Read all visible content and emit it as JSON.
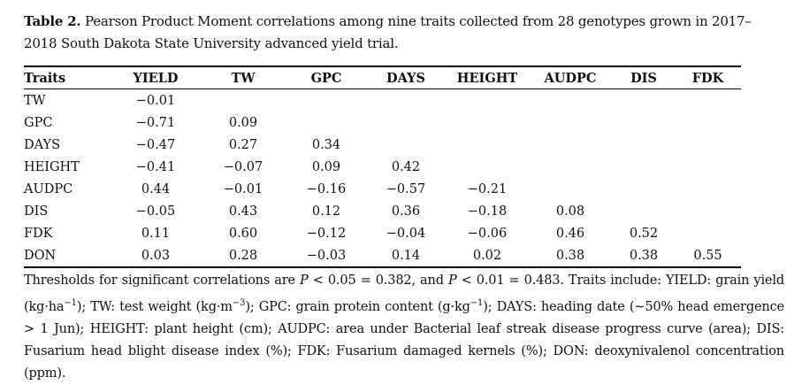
{
  "caption": {
    "label": "Table 2.",
    "text": " Pearson Product Moment correlations among nine traits collected from 28 genotypes grown in 2017–2018 South Dakota State University advanced yield trial."
  },
  "table": {
    "headers": [
      "Traits",
      "YIELD",
      "TW",
      "GPC",
      "DAYS",
      "HEIGHT",
      "AUDPC",
      "DIS",
      "FDK"
    ],
    "rows": [
      {
        "trait": "TW",
        "values": [
          "−0.01",
          "",
          "",
          "",
          "",
          "",
          "",
          ""
        ]
      },
      {
        "trait": "GPC",
        "values": [
          "−0.71",
          "0.09",
          "",
          "",
          "",
          "",
          "",
          ""
        ]
      },
      {
        "trait": "DAYS",
        "values": [
          "−0.47",
          "0.27",
          "0.34",
          "",
          "",
          "",
          "",
          ""
        ]
      },
      {
        "trait": "HEIGHT",
        "values": [
          "−0.41",
          "−0.07",
          "0.09",
          "0.42",
          "",
          "",
          "",
          ""
        ]
      },
      {
        "trait": "AUDPC",
        "values": [
          "0.44",
          "−0.01",
          "−0.16",
          "−0.57",
          "−0.21",
          "",
          "",
          ""
        ]
      },
      {
        "trait": "DIS",
        "values": [
          "−0.05",
          "0.43",
          "0.12",
          "0.36",
          "−0.18",
          "0.08",
          "",
          ""
        ]
      },
      {
        "trait": "FDK",
        "values": [
          "0.11",
          "0.60",
          "−0.12",
          "−0.04",
          "−0.06",
          "0.46",
          "0.52",
          ""
        ]
      },
      {
        "trait": "DON",
        "values": [
          "0.03",
          "0.28",
          "−0.03",
          "0.14",
          "0.02",
          "0.38",
          "0.38",
          "0.55"
        ]
      }
    ]
  },
  "footnote": {
    "part1": "Thresholds for significant correlations are ",
    "p1": "P",
    "part2": " < 0.05 = 0.382, and ",
    "p2": "P",
    "part3": " < 0.01 = 0.483. Traits include: YIELD: grain yield (kg·ha",
    "sup1": "−1",
    "part4": "); TW: test weight (kg·m",
    "sup2": "−3",
    "part5": "); GPC: grain protein content (g·kg",
    "sup3": "−1",
    "part6": "); DAYS: heading date (~50% head emergence > 1 Jun); HEIGHT: plant height (cm); AUDPC: area under Bacterial leaf streak disease progress curve (area); DIS: Fusarium head blight disease index (%); FDK: Fusarium damaged kernels (%); DON: deoxynivalenol concentration (ppm)."
  }
}
